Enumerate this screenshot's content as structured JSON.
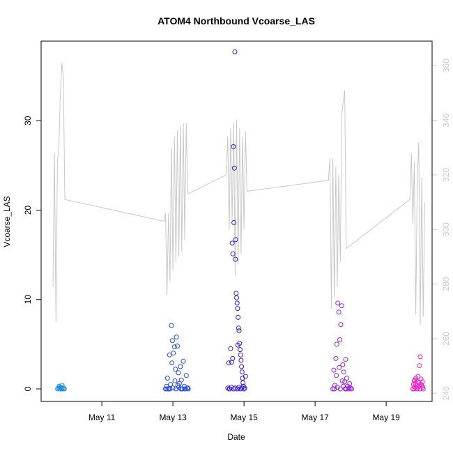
{
  "chart_data": {
    "type": "scatter",
    "title": "ATOM4 Northbound Vcoarse_LAS",
    "xlabel": "Date",
    "ylabel": "Vcoarse_LAS",
    "x_range": [
      "2016-05-09T07:00",
      "2016-05-20T07:00"
    ],
    "x_ticks": [
      {
        "date": "2016-05-11",
        "label": "May 11"
      },
      {
        "date": "2016-05-13",
        "label": "May 13"
      },
      {
        "date": "2016-05-15",
        "label": "May 15"
      },
      {
        "date": "2016-05-17",
        "label": "May 17"
      },
      {
        "date": "2016-05-19",
        "label": "May 19"
      }
    ],
    "ylim": [
      -1.4,
      38.9
    ],
    "y_ticks": [
      0,
      10,
      20,
      30
    ],
    "y2lim": [
      237,
      369
    ],
    "y2_ticks": [
      240,
      260,
      280,
      300,
      320,
      340,
      360
    ],
    "y2_color": "#c8c8c8",
    "grid": false,
    "series": [
      {
        "color": "#1f8fe6",
        "marker": "open-circle",
        "points": [
          [
            "2016-05-09T18:10",
            0.0
          ],
          [
            "2016-05-09T18:40",
            0.1
          ],
          [
            "2016-05-09T19:10",
            0.3
          ],
          [
            "2016-05-09T19:40",
            0.0
          ],
          [
            "2016-05-09T20:10",
            0.2
          ],
          [
            "2016-05-09T20:40",
            0.05
          ],
          [
            "2016-05-09T21:10",
            0.4
          ],
          [
            "2016-05-09T21:40",
            0.0
          ],
          [
            "2016-05-09T22:10",
            0.1
          ],
          [
            "2016-05-09T22:40",
            0.0
          ],
          [
            "2016-05-09T19:25",
            0.15
          ],
          [
            "2016-05-09T20:55",
            0.0
          ]
        ]
      },
      {
        "color": "#1e4be6",
        "marker": "open-circle",
        "points": [
          [
            "2016-05-12T19:00",
            0.0
          ],
          [
            "2016-05-12T19:40",
            0.3
          ],
          [
            "2016-05-12T20:20",
            1.2
          ],
          [
            "2016-05-12T21:00",
            0.0
          ],
          [
            "2016-05-12T21:40",
            3.8
          ],
          [
            "2016-05-12T22:20",
            0.5
          ],
          [
            "2016-05-12T23:00",
            7.1
          ],
          [
            "2016-05-12T23:40",
            5.4
          ],
          [
            "2016-05-13T00:20",
            4.0
          ],
          [
            "2016-05-13T01:00",
            4.7
          ],
          [
            "2016-05-13T01:40",
            2.2
          ],
          [
            "2016-05-13T02:20",
            5.8
          ],
          [
            "2016-05-13T03:00",
            4.8
          ],
          [
            "2016-05-13T03:40",
            1.8
          ],
          [
            "2016-05-13T04:20",
            0.6
          ],
          [
            "2016-05-13T05:00",
            2.5
          ],
          [
            "2016-05-13T05:40",
            1.0
          ],
          [
            "2016-05-13T06:20",
            0.0
          ],
          [
            "2016-05-13T07:00",
            3.1
          ],
          [
            "2016-05-13T07:40",
            0.3
          ],
          [
            "2016-05-13T08:20",
            0.0
          ],
          [
            "2016-05-13T09:00",
            1.5
          ],
          [
            "2016-05-13T09:40",
            0.1
          ],
          [
            "2016-05-13T10:20",
            0.0
          ],
          [
            "2016-05-12T20:00",
            0.0
          ],
          [
            "2016-05-12T22:00",
            0.0
          ],
          [
            "2016-05-13T00:00",
            0.1
          ],
          [
            "2016-05-13T02:00",
            0.0
          ],
          [
            "2016-05-13T04:00",
            0.2
          ],
          [
            "2016-05-13T06:00",
            0.0
          ],
          [
            "2016-05-13T08:00",
            0.0
          ],
          [
            "2016-05-13T10:00",
            0.1
          ],
          [
            "2016-05-12T23:20",
            2.9
          ],
          [
            "2016-05-13T01:20",
            0.9
          ],
          [
            "2016-05-13T03:20",
            0.4
          ],
          [
            "2016-05-13T05:20",
            0.0
          ]
        ]
      },
      {
        "color": "#3a16e0",
        "marker": "open-circle",
        "points": [
          [
            "2016-05-14T13:00",
            0.1
          ],
          [
            "2016-05-14T13:40",
            2.9
          ],
          [
            "2016-05-14T14:20",
            0.0
          ],
          [
            "2016-05-14T15:00",
            4.5
          ],
          [
            "2016-05-14T15:40",
            3.0
          ],
          [
            "2016-05-14T16:00",
            16.3
          ],
          [
            "2016-05-14T16:30",
            15.1
          ],
          [
            "2016-05-14T16:50",
            27.1
          ],
          [
            "2016-05-14T17:10",
            18.6
          ],
          [
            "2016-05-14T17:30",
            24.7
          ],
          [
            "2016-05-14T17:50",
            37.7
          ],
          [
            "2016-05-14T18:10",
            14.5
          ],
          [
            "2016-05-14T18:20",
            16.7
          ],
          [
            "2016-05-14T18:40",
            10.7
          ],
          [
            "2016-05-14T19:00",
            10.2
          ],
          [
            "2016-05-14T19:20",
            9.6
          ],
          [
            "2016-05-14T19:40",
            9.0
          ],
          [
            "2016-05-14T20:00",
            8.0
          ],
          [
            "2016-05-14T20:20",
            6.8
          ],
          [
            "2016-05-14T20:40",
            6.5
          ],
          [
            "2016-05-14T21:00",
            5.1
          ],
          [
            "2016-05-14T21:20",
            4.4
          ],
          [
            "2016-05-14T21:40",
            3.8
          ],
          [
            "2016-05-14T22:00",
            3.2
          ],
          [
            "2016-05-14T22:20",
            2.5
          ],
          [
            "2016-05-14T22:40",
            1.9
          ],
          [
            "2016-05-14T23:00",
            1.2
          ],
          [
            "2016-05-14T23:20",
            0.7
          ],
          [
            "2016-05-14T23:40",
            0.3
          ],
          [
            "2016-05-15T00:00",
            0.0
          ],
          [
            "2016-05-15T00:30",
            0.1
          ],
          [
            "2016-05-15T01:00",
            1.4
          ],
          [
            "2016-05-14T14:00",
            0.0
          ],
          [
            "2016-05-14T15:20",
            0.2
          ],
          [
            "2016-05-14T17:00",
            0.0
          ],
          [
            "2016-05-14T18:00",
            0.1
          ],
          [
            "2016-05-14T19:30",
            0.0
          ],
          [
            "2016-05-14T20:30",
            0.2
          ],
          [
            "2016-05-14T21:30",
            0.0
          ],
          [
            "2016-05-14T22:30",
            0.1
          ],
          [
            "2016-05-14T16:20",
            3.4
          ],
          [
            "2016-05-14T19:50",
            4.9
          ]
        ]
      },
      {
        "color": "#9b1ee0",
        "marker": "open-circle",
        "points": [
          [
            "2016-05-17T12:00",
            0.0
          ],
          [
            "2016-05-17T12:40",
            2.1
          ],
          [
            "2016-05-17T13:20",
            0.4
          ],
          [
            "2016-05-17T14:00",
            3.4
          ],
          [
            "2016-05-17T14:40",
            5.0
          ],
          [
            "2016-05-17T15:20",
            9.6
          ],
          [
            "2016-05-17T16:00",
            8.6
          ],
          [
            "2016-05-17T16:40",
            5.5
          ],
          [
            "2016-05-17T17:20",
            7.2
          ],
          [
            "2016-05-17T18:00",
            9.3
          ],
          [
            "2016-05-17T18:40",
            2.7
          ],
          [
            "2016-05-17T19:20",
            1.9
          ],
          [
            "2016-05-17T20:00",
            0.8
          ],
          [
            "2016-05-17T20:40",
            3.3
          ],
          [
            "2016-05-17T21:20",
            1.2
          ],
          [
            "2016-05-17T22:00",
            0.3
          ],
          [
            "2016-05-17T22:40",
            0.0
          ],
          [
            "2016-05-17T23:20",
            0.6
          ],
          [
            "2016-05-18T00:00",
            0.1
          ],
          [
            "2016-05-18T00:40",
            0.0
          ],
          [
            "2016-05-17T13:00",
            0.0
          ],
          [
            "2016-05-17T15:00",
            0.2
          ],
          [
            "2016-05-17T17:00",
            0.0
          ],
          [
            "2016-05-17T19:00",
            0.3
          ],
          [
            "2016-05-17T21:00",
            0.0
          ],
          [
            "2016-05-17T23:00",
            0.1
          ],
          [
            "2016-05-17T14:20",
            1.5
          ],
          [
            "2016-05-17T16:20",
            2.4
          ],
          [
            "2016-05-17T18:20",
            0.9
          ],
          [
            "2016-05-17T20:20",
            0.0
          ]
        ]
      },
      {
        "color": "#f01ec8",
        "marker": "open-circle",
        "points": [
          [
            "2016-05-19T18:00",
            0.0
          ],
          [
            "2016-05-19T18:30",
            0.5
          ],
          [
            "2016-05-19T19:00",
            0.9
          ],
          [
            "2016-05-19T19:30",
            0.2
          ],
          [
            "2016-05-19T20:00",
            1.2
          ],
          [
            "2016-05-19T20:30",
            0.4
          ],
          [
            "2016-05-19T21:00",
            0.0
          ],
          [
            "2016-05-19T21:30",
            1.4
          ],
          [
            "2016-05-19T22:00",
            0.7
          ],
          [
            "2016-05-19T22:30",
            2.6
          ],
          [
            "2016-05-19T23:00",
            3.6
          ],
          [
            "2016-05-19T23:30",
            1.1
          ],
          [
            "2016-05-20T00:00",
            0.3
          ],
          [
            "2016-05-20T00:30",
            0.8
          ],
          [
            "2016-05-20T01:00",
            0.0
          ],
          [
            "2016-05-19T18:45",
            0.0
          ],
          [
            "2016-05-19T19:45",
            0.6
          ],
          [
            "2016-05-19T20:45",
            0.1
          ],
          [
            "2016-05-19T21:45",
            0.3
          ],
          [
            "2016-05-19T22:45",
            0.0
          ],
          [
            "2016-05-19T23:45",
            0.5
          ],
          [
            "2016-05-20T00:45",
            0.2
          ],
          [
            "2016-05-19T19:15",
            1.0
          ],
          [
            "2016-05-19T21:15",
            0.8
          ]
        ]
      },
      {
        "axis": "right",
        "color": "#c8c8c8",
        "marker": "line",
        "points": [
          [
            "2016-05-09T15:00",
            279
          ],
          [
            "2016-05-09T16:00",
            328
          ],
          [
            "2016-05-09T17:00",
            266
          ],
          [
            "2016-05-09T18:00",
            325
          ],
          [
            "2016-05-09T19:00",
            330
          ],
          [
            "2016-05-09T20:00",
            350
          ],
          [
            "2016-05-09T21:00",
            361
          ],
          [
            "2016-05-09T22:00",
            356
          ],
          [
            "2016-05-09T23:00",
            311
          ],
          [
            "2016-05-12T18:00",
            303
          ],
          [
            "2016-05-12T19:00",
            306
          ],
          [
            "2016-05-12T20:00",
            276
          ],
          [
            "2016-05-12T21:00",
            306
          ],
          [
            "2016-05-12T22:00",
            281
          ],
          [
            "2016-05-12T23:00",
            330
          ],
          [
            "2016-05-13T00:00",
            285
          ],
          [
            "2016-05-13T01:00",
            334
          ],
          [
            "2016-05-13T02:00",
            288
          ],
          [
            "2016-05-13T03:00",
            336
          ],
          [
            "2016-05-13T04:00",
            290
          ],
          [
            "2016-05-13T05:00",
            338
          ],
          [
            "2016-05-13T06:00",
            292
          ],
          [
            "2016-05-13T07:00",
            339
          ],
          [
            "2016-05-13T08:00",
            296
          ],
          [
            "2016-05-13T09:00",
            339
          ],
          [
            "2016-05-13T10:00",
            313
          ],
          [
            "2016-05-14T12:00",
            320
          ],
          [
            "2016-05-14T13:00",
            334
          ],
          [
            "2016-05-14T14:00",
            300
          ],
          [
            "2016-05-14T15:00",
            337
          ],
          [
            "2016-05-14T16:00",
            303
          ],
          [
            "2016-05-14T17:00",
            339
          ],
          [
            "2016-05-14T18:00",
            283
          ],
          [
            "2016-05-14T19:00",
            340
          ],
          [
            "2016-05-14T20:00",
            287
          ],
          [
            "2016-05-14T21:00",
            337
          ],
          [
            "2016-05-14T22:00",
            291
          ],
          [
            "2016-05-14T23:00",
            334
          ],
          [
            "2016-05-15T00:00",
            300
          ],
          [
            "2016-05-15T01:00",
            336
          ],
          [
            "2016-05-15T02:00",
            314
          ],
          [
            "2016-05-17T09:00",
            318
          ],
          [
            "2016-05-17T10:00",
            326
          ],
          [
            "2016-05-17T11:00",
            271
          ],
          [
            "2016-05-17T12:00",
            326
          ],
          [
            "2016-05-17T13:00",
            275
          ],
          [
            "2016-05-17T14:00",
            323
          ],
          [
            "2016-05-17T15:00",
            279
          ],
          [
            "2016-05-17T16:00",
            320
          ],
          [
            "2016-05-17T17:00",
            288
          ],
          [
            "2016-05-17T18:00",
            342
          ],
          [
            "2016-05-17T19:00",
            347
          ],
          [
            "2016-05-17T20:00",
            351
          ],
          [
            "2016-05-17T21:00",
            293
          ],
          [
            "2016-05-19T16:00",
            311
          ],
          [
            "2016-05-19T17:00",
            328
          ],
          [
            "2016-05-19T18:00",
            302
          ],
          [
            "2016-05-19T19:00",
            325
          ],
          [
            "2016-05-19T20:00",
            269
          ],
          [
            "2016-05-19T21:00",
            318
          ],
          [
            "2016-05-19T22:00",
            332
          ],
          [
            "2016-05-19T23:00",
            265
          ],
          [
            "2016-05-20T00:00",
            319
          ],
          [
            "2016-05-20T01:00",
            268
          ],
          [
            "2016-05-20T02:00",
            310
          ]
        ]
      }
    ]
  }
}
